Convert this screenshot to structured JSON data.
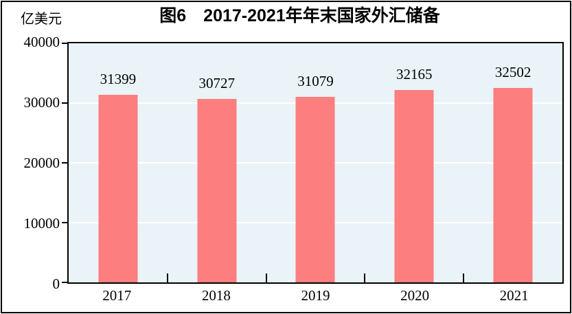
{
  "chart_data": {
    "type": "bar",
    "title": "图6　2017-2021年年末国家外汇储备",
    "unit_label": "亿美元",
    "categories": [
      "2017",
      "2018",
      "2019",
      "2020",
      "2021"
    ],
    "values": [
      31399,
      30727,
      31079,
      32165,
      32502
    ],
    "value_labels": [
      "31399",
      "30727",
      "31079",
      "32165",
      "32502"
    ],
    "ylim": [
      0,
      40000
    ],
    "ytick_labels": [
      "0",
      "10000",
      "20000",
      "30000",
      "40000"
    ],
    "grid": "horizontal",
    "legend_position": "none",
    "colors": {
      "bar": "#FC7E7E",
      "plot_background": "#EAF3F7",
      "gridline": "#FFFFFF",
      "axis": "#000000",
      "text": "#000000"
    }
  }
}
